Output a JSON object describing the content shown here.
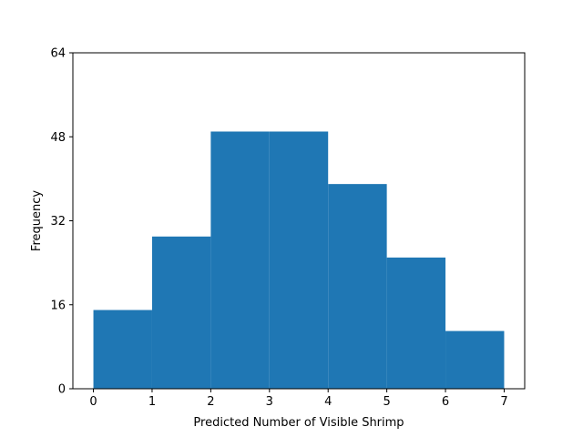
{
  "chart_data": {
    "type": "bar",
    "title": "",
    "xlabel": "Predicted Number of Visible Shrimp",
    "ylabel": "Frequency",
    "bins": [
      {
        "x0": 0,
        "x1": 1,
        "value": 15
      },
      {
        "x0": 1,
        "x1": 2,
        "value": 29
      },
      {
        "x0": 2,
        "x1": 3,
        "value": 49
      },
      {
        "x0": 3,
        "x1": 4,
        "value": 49
      },
      {
        "x0": 4,
        "x1": 5,
        "value": 39
      },
      {
        "x0": 5,
        "x1": 6,
        "value": 25
      },
      {
        "x0": 6,
        "x1": 7,
        "value": 11
      }
    ],
    "xlim": [
      -0.35,
      7.35
    ],
    "ylim": [
      0,
      64
    ],
    "xticks": [
      0,
      1,
      2,
      3,
      4,
      5,
      6,
      7
    ],
    "yticks": [
      0,
      16,
      32,
      48,
      64
    ],
    "grid": false,
    "bar_color": "#1f77b4"
  }
}
